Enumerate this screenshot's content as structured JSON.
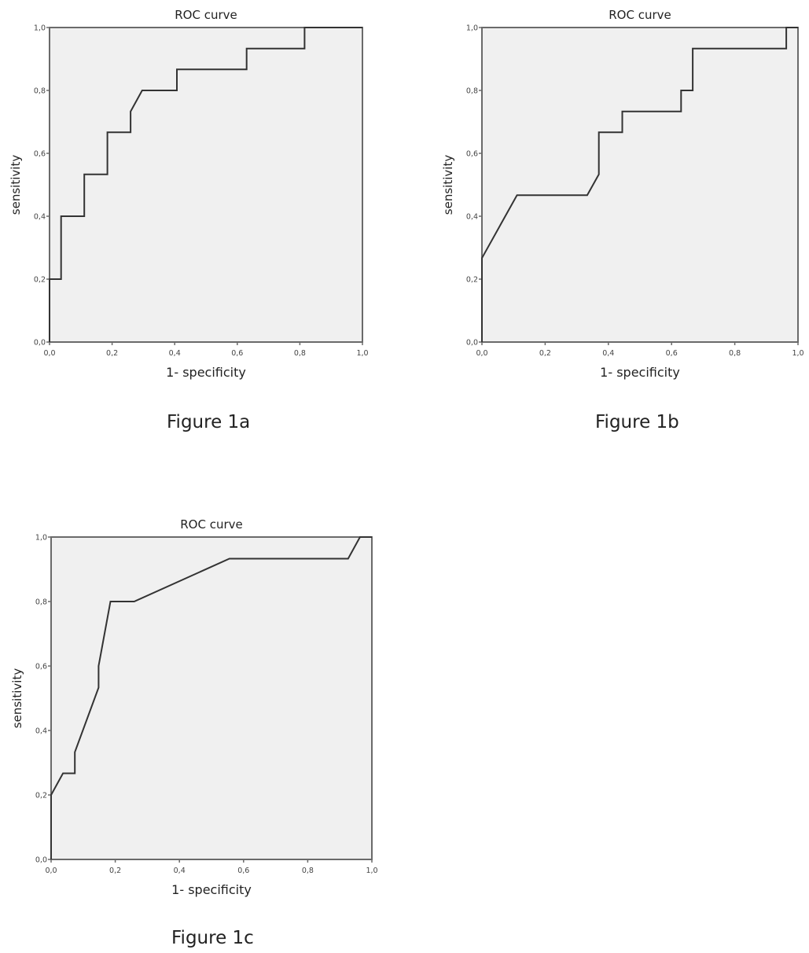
{
  "chart_data": [
    {
      "type": "line",
      "title": "ROC curve",
      "xlabel": "1- specificity",
      "ylabel": "sensitivity",
      "caption": "Figure 1a",
      "xlim": [
        0,
        1
      ],
      "ylim": [
        0,
        1
      ],
      "xticks": [
        "0,0",
        "0,2",
        "0,4",
        "0,6",
        "0,8",
        "1,0"
      ],
      "yticks": [
        "0,0",
        "0,2",
        "0,4",
        "0,6",
        "0,8",
        "1,0"
      ],
      "grid": false,
      "series": [
        {
          "x": [
            0,
            0,
            0.037,
            0.037,
            0.111,
            0.111,
            0.185,
            0.185,
            0.259,
            0.259,
            0.296,
            0.407,
            0.407,
            0.63,
            0.63,
            0.815,
            0.815,
            1
          ],
          "y": [
            0,
            0.2,
            0.2,
            0.4,
            0.4,
            0.533,
            0.533,
            0.667,
            0.667,
            0.733,
            0.8,
            0.8,
            0.867,
            0.867,
            0.933,
            0.933,
            1,
            1
          ]
        }
      ]
    },
    {
      "type": "line",
      "title": "ROC curve",
      "xlabel": "1- specificity",
      "ylabel": "sensitivity",
      "caption": "Figure 1b",
      "xlim": [
        0,
        1
      ],
      "ylim": [
        0,
        1
      ],
      "xticks": [
        "0,0",
        "0,2",
        "0,4",
        "0,6",
        "0,8",
        "1,0"
      ],
      "yticks": [
        "0,0",
        "0,2",
        "0,4",
        "0,6",
        "0,8",
        "1,0"
      ],
      "grid": false,
      "series": [
        {
          "x": [
            0,
            0,
            0.111,
            0.333,
            0.37,
            0.37,
            0.444,
            0.444,
            0.63,
            0.63,
            0.667,
            0.667,
            0.963,
            0.963,
            1
          ],
          "y": [
            0,
            0.267,
            0.467,
            0.467,
            0.533,
            0.667,
            0.667,
            0.733,
            0.733,
            0.8,
            0.8,
            0.933,
            0.933,
            1,
            1
          ]
        }
      ]
    },
    {
      "type": "line",
      "title": "ROC curve",
      "xlabel": "1- specificity",
      "ylabel": "sensitivity",
      "caption": "Figure 1c",
      "xlim": [
        0,
        1
      ],
      "ylim": [
        0,
        1
      ],
      "xticks": [
        "0,0",
        "0,2",
        "0,4",
        "0,6",
        "0,8",
        "1,0"
      ],
      "yticks": [
        "0,0",
        "0,2",
        "0,4",
        "0,6",
        "0,8",
        "1,0"
      ],
      "grid": false,
      "series": [
        {
          "x": [
            0,
            0,
            0.037,
            0.074,
            0.074,
            0.148,
            0.148,
            0.185,
            0.259,
            0.556,
            0.926,
            0.963,
            1
          ],
          "y": [
            0,
            0.2,
            0.267,
            0.267,
            0.333,
            0.533,
            0.6,
            0.8,
            0.8,
            0.933,
            0.933,
            1,
            1
          ]
        }
      ]
    }
  ],
  "colors": {
    "plot_bg": "#f0f0f0",
    "frame": "#6a6a6a",
    "curve": "#333333"
  }
}
